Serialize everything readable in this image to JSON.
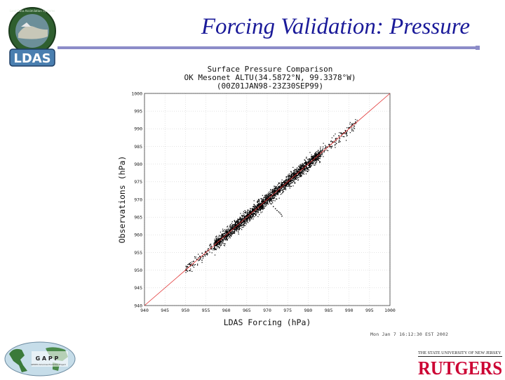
{
  "slide": {
    "title": "Forcing Validation: Pressure",
    "plot_stamp": "Mon Jan 7 16:12:30 EST 2002"
  },
  "logos": {
    "ldas": "LDAS",
    "ldas_ring_text": "Land Data Assimilation Systems",
    "gapp": "G A P P",
    "gapp_subtitle": "GEWEX Americas Prediction Project",
    "rutgers_top": "THE STATE UNIVERSITY OF NEW JERSEY",
    "rutgers": "RUTGERS"
  },
  "colors": {
    "title": "#1a1a99",
    "rule": "#8c8cc8",
    "one_to_one_line": "#e03030",
    "points": "#000000",
    "rutgers_red": "#cc0033"
  },
  "chart_data": {
    "type": "scatter",
    "title": "Surface Pressure Comparison",
    "subtitle_lines": [
      "OK Mesonet ALTU(34.5872°N, 99.3378°W)",
      "(00Z01JAN98-23Z30SEP99)"
    ],
    "xlabel": "LDAS Forcing (hPa)",
    "ylabel": "Observations (hPa)",
    "xlim": [
      940,
      1000
    ],
    "ylim": [
      940,
      1000
    ],
    "xticks": [
      940,
      945,
      950,
      955,
      960,
      965,
      970,
      975,
      980,
      985,
      990,
      995,
      1000
    ],
    "yticks": [
      940,
      945,
      950,
      955,
      960,
      965,
      970,
      975,
      980,
      985,
      990,
      995,
      1000
    ],
    "grid": true,
    "reference_line": {
      "type": "1:1",
      "from": [
        940,
        940
      ],
      "to": [
        1000,
        1000
      ]
    },
    "point_cloud": {
      "description_values": "dense cloud along 1:1 line",
      "x_range": [
        950,
        992
      ],
      "core_range": [
        957,
        983
      ],
      "spread_hpa": 0.9
    },
    "series": [
      {
        "x": [
          950.5,
          951.2,
          952.0,
          952.8,
          953.5,
          954.1,
          954.9,
          955.6,
          956.3,
          957.0,
          957.8,
          958.5,
          959.2,
          960.0,
          960.7,
          961.5,
          962.2,
          963.0,
          963.8,
          964.5,
          965.3,
          966.0,
          966.8,
          967.5,
          968.3,
          969.0,
          969.8,
          970.6,
          971.3,
          972.1,
          972.8,
          973.6,
          974.4,
          975.1,
          975.9,
          976.6,
          977.4,
          978.2,
          978.9,
          979.7,
          980.4,
          981.2,
          982.0,
          982.7,
          983.5,
          984.3,
          985.1,
          985.9,
          986.7,
          987.5,
          988.3,
          989.1,
          990.0,
          990.8,
          991.6
        ],
        "y": [
          951.0,
          951.6,
          952.5,
          953.1,
          953.9,
          954.8,
          955.3,
          956.1,
          956.8,
          957.4,
          958.4,
          959.0,
          959.6,
          960.6,
          961.1,
          962.0,
          962.8,
          963.4,
          964.3,
          965.0,
          965.7,
          966.5,
          967.4,
          967.9,
          968.8,
          969.6,
          970.2,
          971.0,
          971.9,
          972.5,
          973.3,
          974.1,
          974.8,
          975.6,
          976.5,
          977.0,
          977.9,
          978.6,
          979.4,
          980.1,
          980.9,
          981.7,
          982.4,
          983.2,
          984.0,
          984.7,
          985.6,
          986.3,
          987.1,
          988.0,
          988.6,
          989.5,
          990.3,
          991.2,
          991.9
        ]
      }
    ],
    "outlier_tail": {
      "x": [
        970.5,
        971.0,
        971.5,
        972.0,
        972.4,
        972.8,
        973.1,
        973.4,
        973.6
      ],
      "y": [
        969.5,
        968.8,
        968.0,
        967.4,
        966.9,
        966.5,
        966.2,
        965.8,
        965.3
      ]
    }
  }
}
